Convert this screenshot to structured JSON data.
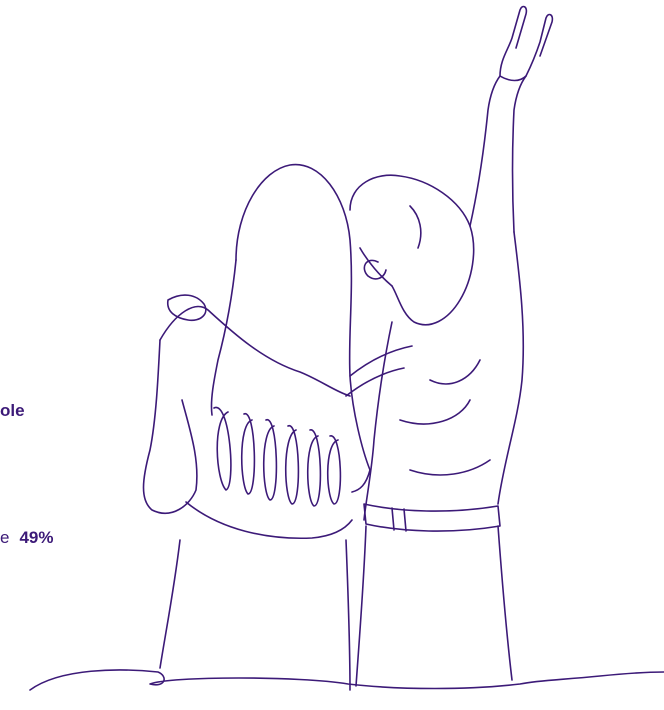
{
  "text_fragments": {
    "bold_fragment": "ole",
    "stat_prefix": "e",
    "stat_value": "49%"
  },
  "illustration": {
    "name": "two-friends-line-art",
    "stroke_color": "#3c1a78"
  }
}
